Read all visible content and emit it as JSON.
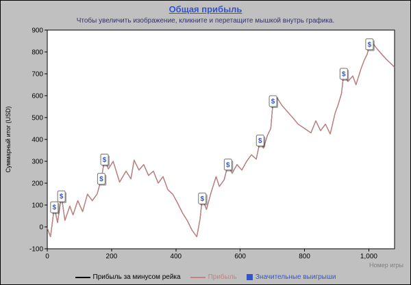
{
  "chart_data": {
    "type": "line",
    "title": "Общая прибыль",
    "subtitle": "Чтобы увеличить изображение, кликните и перетащите мышкой внутрь графика.",
    "xlabel": "Номер игры",
    "ylabel": "Суммарный итог (USD)",
    "xlim": [
      0,
      1080
    ],
    "ylim": [
      -100,
      900
    ],
    "xticks": [
      0,
      200,
      400,
      600,
      800,
      1000
    ],
    "xtick_labels": [
      "0",
      "200",
      "400",
      "600",
      "800",
      "1,000"
    ],
    "yticks": [
      -100,
      0,
      100,
      200,
      300,
      400,
      500,
      600,
      700,
      800,
      900
    ],
    "grid": false,
    "legend_position": "bottom",
    "colors": {
      "background": "#c0c0c0",
      "plot_background": "#ffffff",
      "title": "#3355cc",
      "subtitle": "#333366",
      "axis": "#000000",
      "xlabel_text": "#808080",
      "marker_blue": "#3355cc",
      "profit_line": "#c97f7f",
      "net_line": "#000000"
    },
    "series": [
      {
        "name": "Прибыль за минусом рейка",
        "color": "#000000",
        "x": [
          0,
          10,
          22,
          32,
          44,
          55,
          70,
          80,
          95,
          110,
          125,
          140,
          155,
          168,
          178,
          190,
          205,
          225,
          245,
          260,
          270,
          285,
          300,
          315,
          330,
          345,
          360,
          375,
          390,
          405,
          420,
          435,
          450,
          465,
          475,
          482,
          495,
          510,
          525,
          535,
          550,
          562,
          575,
          590,
          605,
          620,
          635,
          650,
          662,
          672,
          685,
          695,
          702,
          715,
          730,
          745,
          760,
          780,
          800,
          820,
          835,
          850,
          865,
          880,
          895,
          905,
          915,
          922,
          935,
          950,
          960,
          975,
          985,
          995,
          1002,
          1010,
          1025,
          1040,
          1055,
          1070,
          1080
        ],
        "y": [
          -5,
          -45,
          90,
          20,
          140,
          30,
          95,
          55,
          120,
          70,
          150,
          120,
          150,
          220,
          308,
          265,
          300,
          205,
          255,
          220,
          305,
          260,
          285,
          235,
          255,
          200,
          230,
          170,
          150,
          110,
          65,
          30,
          -15,
          -45,
          35,
          130,
          80,
          160,
          230,
          185,
          215,
          285,
          245,
          285,
          260,
          300,
          330,
          310,
          395,
          360,
          420,
          450,
          575,
          590,
          555,
          530,
          505,
          470,
          450,
          430,
          485,
          440,
          470,
          425,
          520,
          560,
          610,
          700,
          665,
          690,
          650,
          720,
          760,
          790,
          835,
          845,
          815,
          790,
          765,
          745,
          730
        ]
      },
      {
        "name": "Прибыль",
        "color": "#c97f7f",
        "x": [
          0,
          10,
          22,
          32,
          44,
          55,
          70,
          80,
          95,
          110,
          125,
          140,
          155,
          168,
          178,
          190,
          205,
          225,
          245,
          260,
          270,
          285,
          300,
          315,
          330,
          345,
          360,
          375,
          390,
          405,
          420,
          435,
          450,
          465,
          475,
          482,
          495,
          510,
          525,
          535,
          550,
          562,
          575,
          590,
          605,
          620,
          635,
          650,
          662,
          672,
          685,
          695,
          702,
          715,
          730,
          745,
          760,
          780,
          800,
          820,
          835,
          850,
          865,
          880,
          895,
          905,
          915,
          922,
          935,
          950,
          960,
          975,
          985,
          995,
          1002,
          1010,
          1025,
          1040,
          1055,
          1070,
          1080
        ],
        "y": [
          -5,
          -45,
          90,
          20,
          140,
          30,
          95,
          55,
          120,
          70,
          150,
          120,
          150,
          220,
          308,
          265,
          300,
          205,
          255,
          220,
          305,
          260,
          285,
          235,
          255,
          200,
          230,
          170,
          150,
          110,
          65,
          30,
          -15,
          -45,
          35,
          130,
          80,
          160,
          230,
          185,
          215,
          285,
          245,
          285,
          260,
          300,
          330,
          310,
          395,
          360,
          420,
          450,
          575,
          590,
          555,
          530,
          505,
          470,
          450,
          430,
          485,
          440,
          470,
          425,
          520,
          560,
          610,
          700,
          665,
          690,
          650,
          720,
          760,
          790,
          835,
          845,
          815,
          790,
          765,
          745,
          730
        ]
      }
    ],
    "markers": {
      "name": "Значительные выигрыши",
      "label": "$",
      "color": "#3355cc",
      "points": [
        [
          22,
          90
        ],
        [
          44,
          140
        ],
        [
          168,
          220
        ],
        [
          178,
          308
        ],
        [
          482,
          130
        ],
        [
          562,
          285
        ],
        [
          662,
          395
        ],
        [
          702,
          575
        ],
        [
          922,
          700
        ],
        [
          1002,
          835
        ]
      ]
    }
  }
}
